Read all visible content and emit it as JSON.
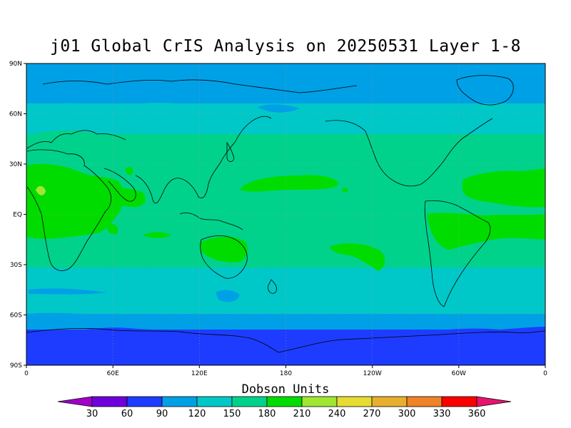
{
  "title": "j01 Global CrIS Analysis on 20250531 Layer 1-8",
  "map": {
    "lat_labels": [
      "90N",
      "60N",
      "30N",
      "EQ",
      "30S",
      "60S",
      "90S"
    ],
    "lon_labels": [
      "0",
      "60E",
      "120E",
      "180",
      "120W",
      "60W",
      "0"
    ],
    "units_label": "Dobson Units"
  },
  "colorbar": {
    "levels": [
      "30",
      "60",
      "90",
      "120",
      "150",
      "180",
      "210",
      "240",
      "270",
      "300",
      "330",
      "360"
    ],
    "colors": [
      "#a000c8",
      "#6e00dc",
      "#1e3cff",
      "#00a0e6",
      "#00c8c8",
      "#00d28c",
      "#00dc00",
      "#a0e632",
      "#e6dc32",
      "#e6af2d",
      "#f08228",
      "#fa0000",
      "#e6146e"
    ]
  },
  "field_colors": {
    "c60": "#1e3cff",
    "c90": "#00a0e6",
    "c120": "#00c8c8",
    "c150": "#00d28c",
    "c180": "#00dc00",
    "c210": "#a0e632"
  }
}
